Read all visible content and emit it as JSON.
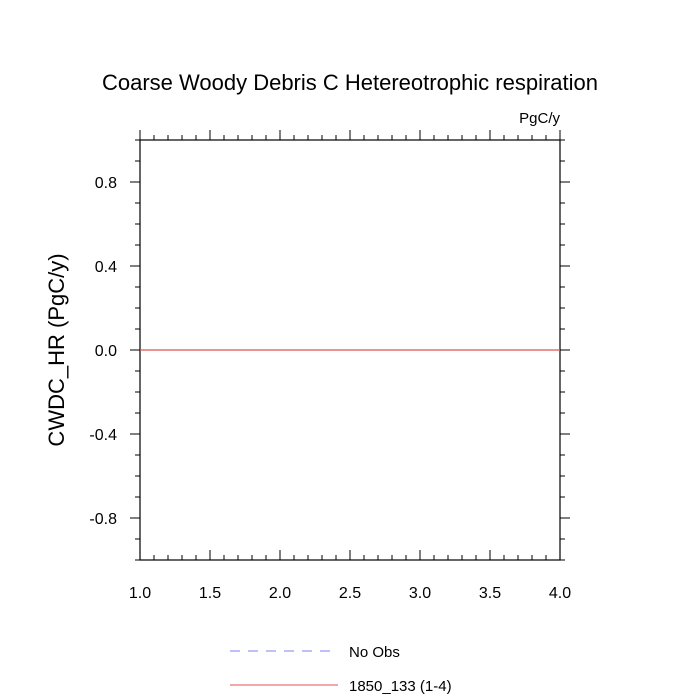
{
  "chart_data": {
    "type": "line",
    "title": "Coarse Woody Debris C Hetereotrophic respiration",
    "units": "PgC/y",
    "xlabel": "",
    "ylabel": "CWDC_HR  (PgC/y)",
    "xlim": [
      1.0,
      4.0
    ],
    "ylim": [
      -1.0,
      1.0
    ],
    "x_ticks": [
      1.0,
      1.5,
      2.0,
      2.5,
      3.0,
      3.5,
      4.0
    ],
    "x_tick_labels": [
      "1.0",
      "1.5",
      "2.0",
      "2.5",
      "3.0",
      "3.5",
      "4.0"
    ],
    "y_ticks": [
      0.8,
      0.4,
      0.0,
      -0.4,
      -0.8
    ],
    "y_tick_labels": [
      "0.8",
      "0.4",
      "0.0",
      "-0.4",
      "-0.8"
    ],
    "grid": false,
    "legend_position": "bottom",
    "series": [
      {
        "name": "No Obs",
        "color": "#8080f0",
        "style": "dashed",
        "x": [],
        "y": []
      },
      {
        "name": "1850_133 (1-4)",
        "color": "#e05050",
        "style": "solid",
        "x": [
          1,
          2,
          3,
          4
        ],
        "y": [
          0.0,
          0.0,
          0.0,
          0.0
        ]
      }
    ]
  }
}
